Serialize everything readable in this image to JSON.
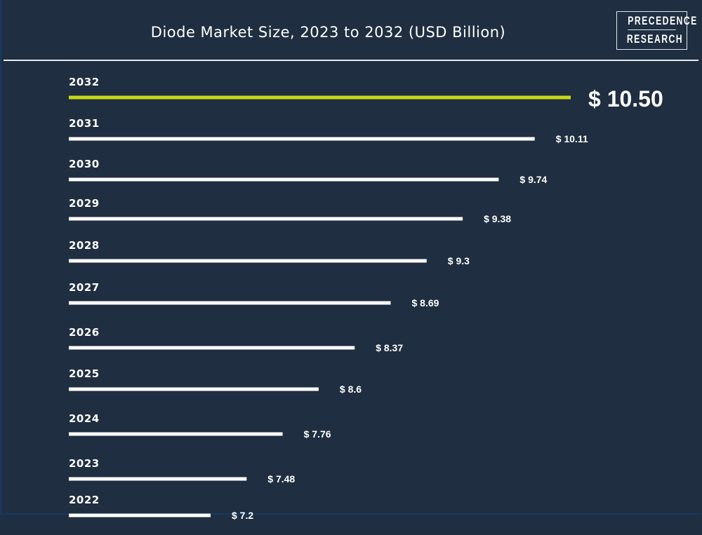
{
  "brand": {
    "logo_line1": "PRECEDENCE",
    "logo_line2": "RESEARCH"
  },
  "chart_data": {
    "type": "bar",
    "orientation": "horizontal",
    "title": "Diode Market Size, 2023 to 2032 (USD Billion)",
    "categories": [
      "2032",
      "2031",
      "2030",
      "2029",
      "2028",
      "2027",
      "2026",
      "2025",
      "2024",
      "2023",
      "2022"
    ],
    "values": [
      10.5,
      10.11,
      9.74,
      9.38,
      9.3,
      8.69,
      8.37,
      8.6,
      7.76,
      7.48,
      7.2
    ],
    "value_labels": [
      "$ 10.50",
      "$ 10.11",
      "$ 9.74",
      "$ 9.38",
      "$ 9.3",
      "$ 8.69",
      "$ 8.37",
      "$ 8.6",
      "$ 7.76",
      "$ 7.48",
      "$ 7.2"
    ],
    "unit": "USD Billion",
    "highlight_category": "2032",
    "colors": {
      "background": "#1f2e40",
      "bar": "#ffffff",
      "highlight_bar": "#c8d816",
      "text": "#ffffff"
    },
    "grid": false,
    "legend": "none"
  }
}
